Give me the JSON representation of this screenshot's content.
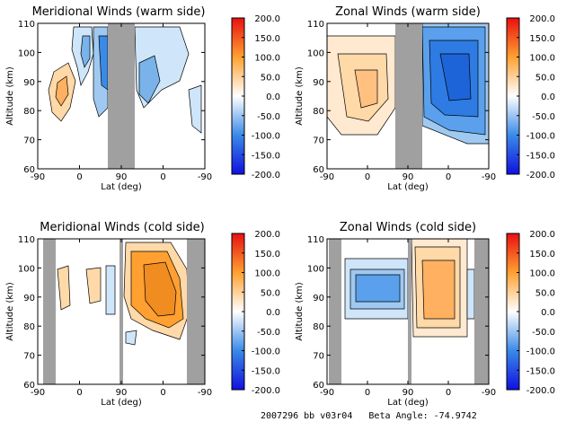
{
  "footer": "2007296 bb v03r04   Beta Angle: -74.9742",
  "colorbar": {
    "ticks": [
      "200.0",
      "150.0",
      "100.0",
      "50.0",
      "0.0",
      "-50.0",
      "-100.0",
      "-150.0",
      "-200.0"
    ],
    "range": [
      -200,
      200
    ],
    "colors": {
      "neg_max": "#1010e0",
      "neg": "#3a8ae8",
      "zero": "#ffffff",
      "pos": "#ffa030",
      "pos_max": "#e81010"
    }
  },
  "chart_data": [
    {
      "type": "heatmap",
      "title": "Meridional Winds (warm side)",
      "xlabel": "Lat (deg)",
      "ylabel": "Altitude (km)",
      "x_ticks": [
        "-90",
        "0",
        "90",
        "0",
        "-90"
      ],
      "y_ticks": [
        "110",
        "100",
        "90",
        "80",
        "70",
        "60"
      ],
      "ylim": [
        60,
        110
      ],
      "colorbar_range": [
        -200,
        200
      ]
    },
    {
      "type": "heatmap",
      "title": "Zonal Winds (warm side)",
      "xlabel": "Lat (deg)",
      "ylabel": "Altitude (km)",
      "x_ticks": [
        "-90",
        "0",
        "90",
        "0",
        "-90"
      ],
      "y_ticks": [
        "110",
        "100",
        "90",
        "80",
        "70",
        "60"
      ],
      "ylim": [
        60,
        110
      ],
      "colorbar_range": [
        -200,
        200
      ]
    },
    {
      "type": "heatmap",
      "title": "Meridional Winds (cold side)",
      "xlabel": "Lat (deg)",
      "ylabel": "Altitude (km)",
      "x_ticks": [
        "-90",
        "0",
        "90",
        "0",
        "-90"
      ],
      "y_ticks": [
        "110",
        "100",
        "90",
        "80",
        "70",
        "60"
      ],
      "ylim": [
        60,
        110
      ],
      "colorbar_range": [
        -200,
        200
      ]
    },
    {
      "type": "heatmap",
      "title": "Zonal Winds (cold side)",
      "xlabel": "Lat (deg)",
      "ylabel": "Altitude (km)",
      "x_ticks": [
        "-90",
        "0",
        "90",
        "0",
        "-90"
      ],
      "y_ticks": [
        "110",
        "100",
        "90",
        "80",
        "70",
        "60"
      ],
      "ylim": [
        60,
        110
      ],
      "colorbar_range": [
        -200,
        200
      ]
    }
  ]
}
